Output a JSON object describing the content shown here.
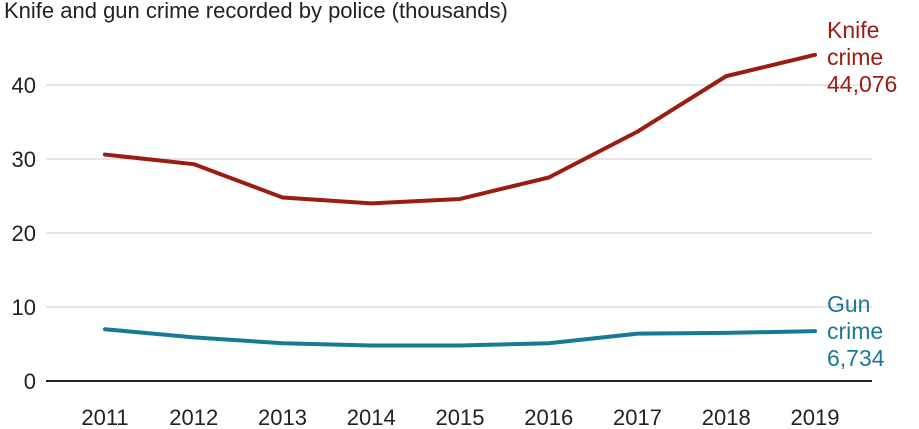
{
  "chart_data": {
    "type": "line",
    "title": "Knife and gun crime recorded by police (thousands)",
    "x": [
      "2011",
      "2012",
      "2013",
      "2014",
      "2015",
      "2016",
      "2017",
      "2018",
      "2019"
    ],
    "ylim": [
      0,
      45
    ],
    "yticks": [
      "0",
      "10",
      "20",
      "30",
      "40"
    ],
    "grid": true,
    "series": [
      {
        "name": "Knife crime",
        "label_lines": [
          "Knife",
          "crime",
          "44,076"
        ],
        "color": "#9b1c11",
        "values": [
          30.6,
          29.3,
          24.8,
          24.0,
          24.6,
          27.5,
          33.7,
          41.2,
          44.076
        ]
      },
      {
        "name": "Gun crime",
        "label_lines": [
          "Gun",
          "crime",
          "6,734"
        ],
        "color": "#1a7a96",
        "values": [
          7.0,
          5.9,
          5.1,
          4.8,
          4.8,
          5.1,
          6.4,
          6.5,
          6.734
        ]
      }
    ]
  }
}
